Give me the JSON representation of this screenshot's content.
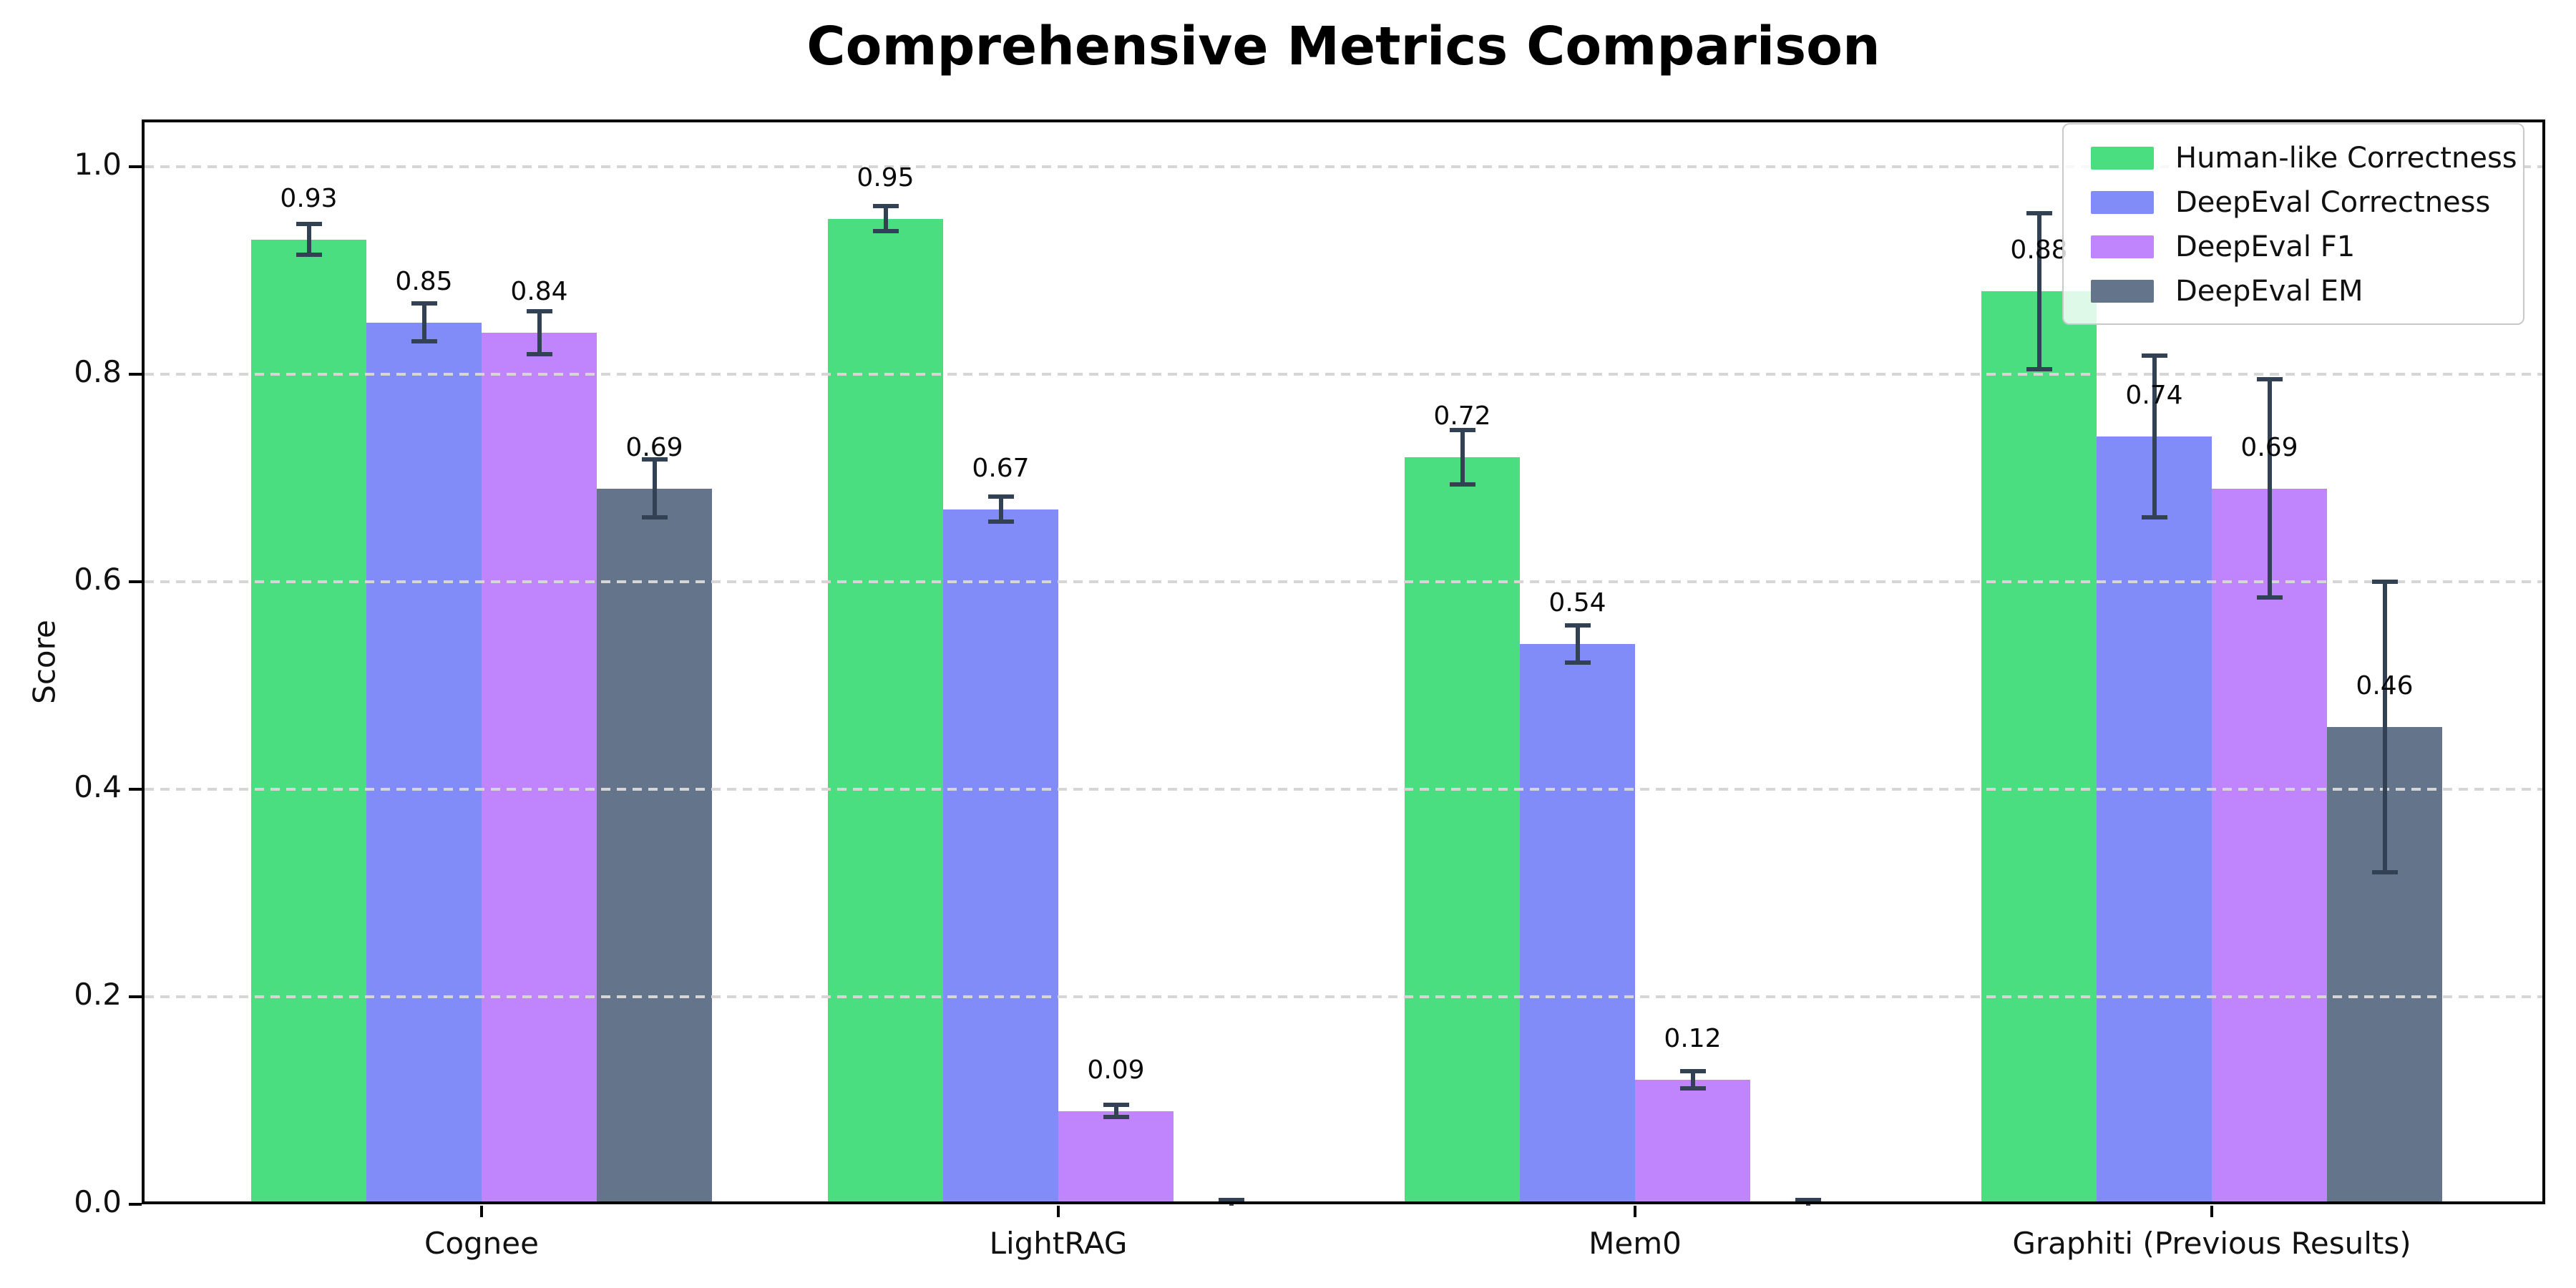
{
  "chart_data": {
    "type": "bar",
    "title": "Comprehensive Metrics Comparison",
    "ylabel": "Score",
    "xlabel": "",
    "categories": [
      "Cognee",
      "LightRAG",
      "Mem0",
      "Graphiti (Previous Results)"
    ],
    "series": [
      {
        "name": "Human-like Correctness",
        "color": "#4ade80",
        "values": [
          0.93,
          0.95,
          0.72,
          0.88
        ],
        "errors": [
          0.015,
          0.012,
          0.026,
          0.075
        ],
        "labels": [
          "0.93",
          "0.95",
          "0.72",
          "0.88"
        ]
      },
      {
        "name": "DeepEval Correctness",
        "color": "#818cf8",
        "values": [
          0.85,
          0.67,
          0.54,
          0.74
        ],
        "errors": [
          0.018,
          0.012,
          0.018,
          0.078
        ],
        "labels": [
          "0.85",
          "0.67",
          "0.54",
          "0.74"
        ]
      },
      {
        "name": "DeepEval F1",
        "color": "#c084fc",
        "values": [
          0.84,
          0.09,
          0.12,
          0.69
        ],
        "errors": [
          0.021,
          0.006,
          0.008,
          0.105
        ],
        "labels": [
          "0.84",
          "0.09",
          "0.12",
          "0.69"
        ]
      },
      {
        "name": "DeepEval EM",
        "color": "#64748b",
        "values": [
          0.69,
          0.0,
          0.0,
          0.46
        ],
        "errors": [
          0.028,
          0.004,
          0.004,
          0.14
        ],
        "labels": [
          "0.69",
          "",
          "",
          "0.46"
        ]
      }
    ],
    "ylim": [
      0.0,
      1.045
    ],
    "yticks": [
      "0.0",
      "0.2",
      "0.4",
      "0.6",
      "0.8",
      "1.0"
    ],
    "grid": "horizontal-dashed",
    "legend_position": "upper-right",
    "error_bar_color": "#334155"
  }
}
